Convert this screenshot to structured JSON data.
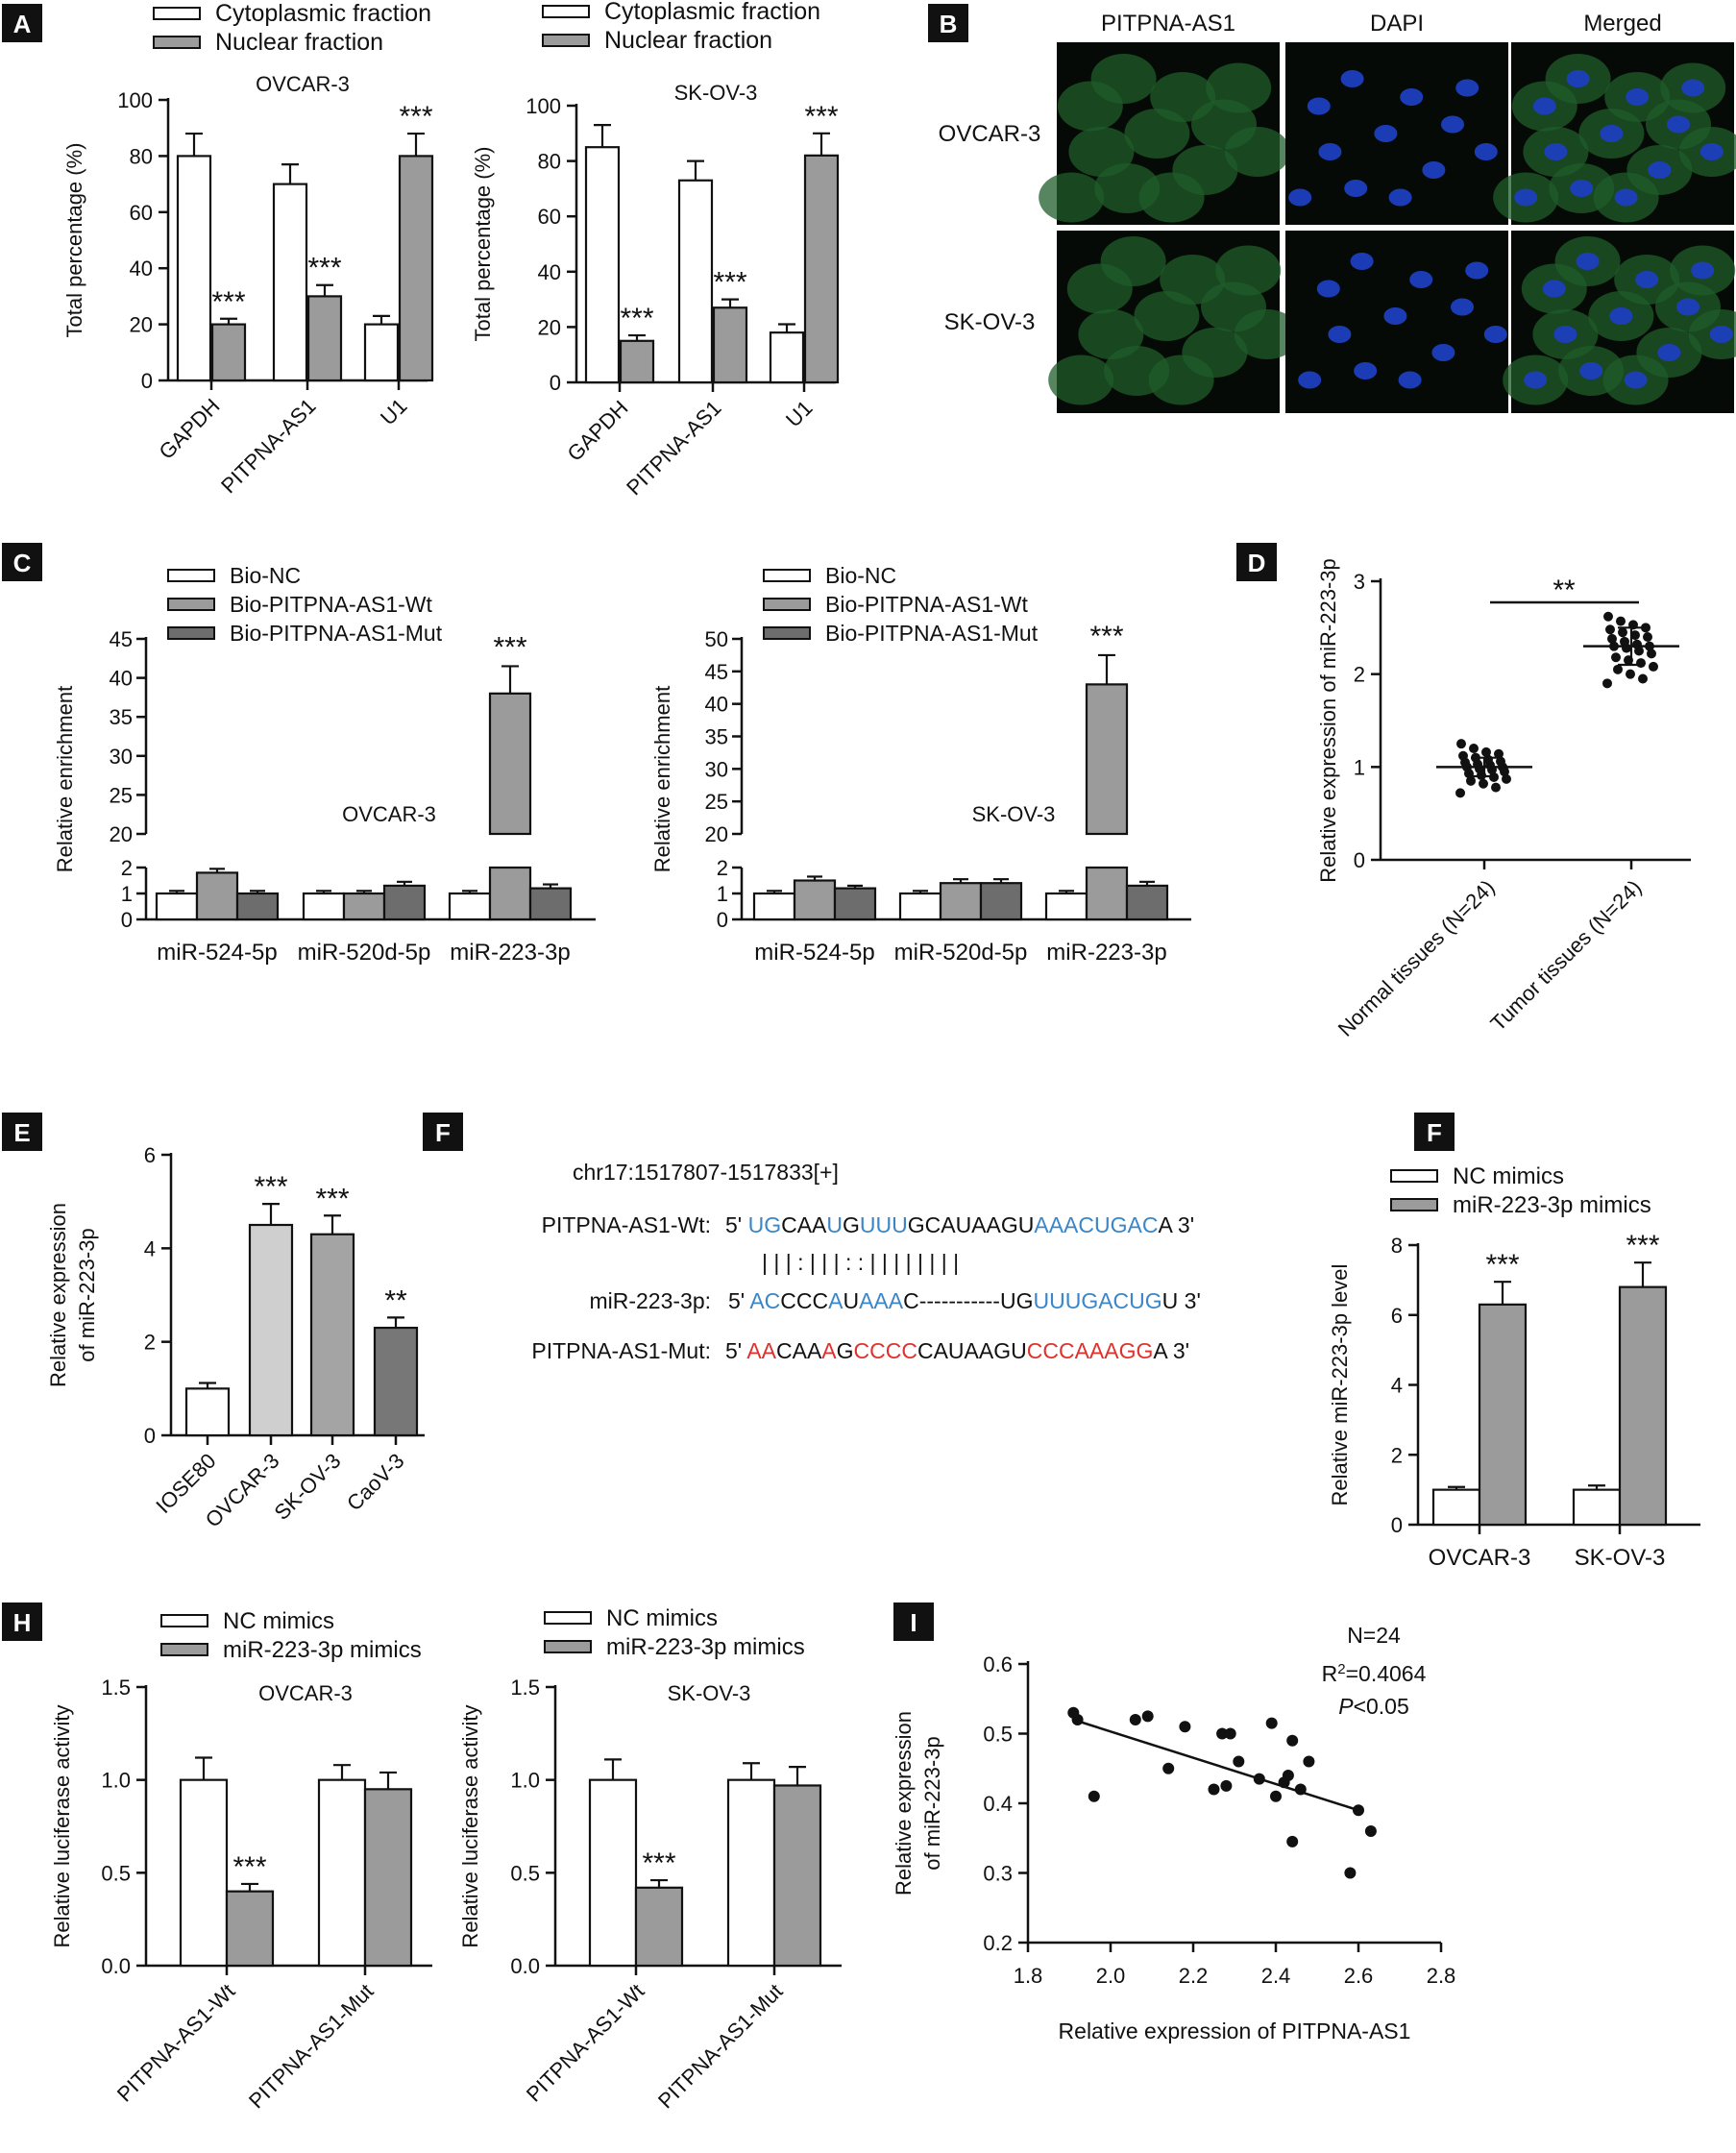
{
  "colors": {
    "white_bar": "#ffffff",
    "gray_bar": "#9b9b9b",
    "dark_bar": "#6d6d6d",
    "light_bar": "#cfcfcf",
    "mid_bar": "#a4a4a4",
    "darker_bar": "#777777",
    "label_bg": "#111111",
    "wt_blue": "#3a86c8",
    "mut_red": "#e0312c",
    "fluor_green": "#1f5c2a",
    "dapi_blue": "#1d3fbf"
  },
  "panel_labels": {
    "A": "A",
    "B": "B",
    "C": "C",
    "D": "D",
    "E": "E",
    "F1": "F",
    "F2": "F",
    "H": "H",
    "I": "I"
  },
  "chart_data": [
    {
      "id": "A1",
      "type": "bar",
      "title": "OVCAR-3",
      "ylabel": "Total percentage (%)",
      "ylim": [
        0,
        100
      ],
      "yticks": [
        0,
        20,
        40,
        60,
        80,
        100
      ],
      "categories": [
        "GAPDH",
        "PITPNA-AS1",
        "U1"
      ],
      "legend": [
        "Cytoplasmic fraction",
        "Nuclear fraction"
      ],
      "series": [
        {
          "name": "Cytoplasmic fraction",
          "values": [
            80,
            70,
            20
          ],
          "errors": [
            8,
            7,
            3
          ]
        },
        {
          "name": "Nuclear fraction",
          "values": [
            20,
            30,
            80
          ],
          "errors": [
            2,
            4,
            8
          ]
        }
      ],
      "annotations": [
        {
          "category": 0,
          "series": 1,
          "text": "***"
        },
        {
          "category": 1,
          "series": 1,
          "text": "***"
        },
        {
          "category": 2,
          "series": 1,
          "text": "***"
        }
      ]
    },
    {
      "id": "A2",
      "type": "bar",
      "title": "SK-OV-3",
      "ylabel": "Total percentage (%)",
      "ylim": [
        0,
        100
      ],
      "yticks": [
        0,
        20,
        40,
        60,
        80,
        100
      ],
      "categories": [
        "GAPDH",
        "PITPNA-AS1",
        "U1"
      ],
      "legend": [
        "Cytoplasmic fraction",
        "Nuclear fraction"
      ],
      "series": [
        {
          "name": "Cytoplasmic fraction",
          "values": [
            85,
            73,
            18
          ],
          "errors": [
            8,
            7,
            3
          ]
        },
        {
          "name": "Nuclear fraction",
          "values": [
            15,
            27,
            82
          ],
          "errors": [
            2,
            3,
            8
          ]
        }
      ],
      "annotations": [
        {
          "category": 0,
          "series": 1,
          "text": "***"
        },
        {
          "category": 1,
          "series": 1,
          "text": "***"
        },
        {
          "category": 2,
          "series": 1,
          "text": "***"
        }
      ]
    },
    {
      "id": "C1",
      "type": "bar",
      "title": "OVCAR-3",
      "ylabel": "Relative enrichment",
      "broken_axis": true,
      "lower_range": [
        0,
        2
      ],
      "lower_ticks": [
        0,
        1,
        2
      ],
      "upper_range": [
        20,
        45
      ],
      "upper_ticks": [
        20,
        25,
        30,
        35,
        40,
        45
      ],
      "categories": [
        "miR-524-5p",
        "miR-520d-5p",
        "miR-223-3p"
      ],
      "legend": [
        "Bio-NC",
        "Bio-PITPNA-AS1-Wt",
        "Bio-PITPNA-AS1-Mut"
      ],
      "series": [
        {
          "name": "Bio-NC",
          "values": [
            1.0,
            1.0,
            1.0
          ],
          "errors": [
            0.1,
            0.1,
            0.1
          ]
        },
        {
          "name": "Bio-PITPNA-AS1-Wt",
          "values": [
            1.8,
            1.0,
            38
          ],
          "errors": [
            0.15,
            0.1,
            3.5
          ]
        },
        {
          "name": "Bio-PITPNA-AS1-Mut",
          "values": [
            1.0,
            1.3,
            1.2
          ],
          "errors": [
            0.1,
            0.15,
            0.15
          ]
        }
      ],
      "annotations": [
        {
          "category": 2,
          "series": 1,
          "text": "***"
        }
      ]
    },
    {
      "id": "C2",
      "type": "bar",
      "title": "SK-OV-3",
      "ylabel": "Relative enrichment",
      "broken_axis": true,
      "lower_range": [
        0,
        2
      ],
      "lower_ticks": [
        0,
        1,
        2
      ],
      "upper_range": [
        20,
        50
      ],
      "upper_ticks": [
        20,
        25,
        30,
        35,
        40,
        45,
        50
      ],
      "categories": [
        "miR-524-5p",
        "miR-520d-5p",
        "miR-223-3p"
      ],
      "legend": [
        "Bio-NC",
        "Bio-PITPNA-AS1-Wt",
        "Bio-PITPNA-AS1-Mut"
      ],
      "series": [
        {
          "name": "Bio-NC",
          "values": [
            1.0,
            1.0,
            1.0
          ],
          "errors": [
            0.1,
            0.1,
            0.1
          ]
        },
        {
          "name": "Bio-PITPNA-AS1-Wt",
          "values": [
            1.5,
            1.4,
            43
          ],
          "errors": [
            0.15,
            0.15,
            4.5
          ]
        },
        {
          "name": "Bio-PITPNA-AS1-Mut",
          "values": [
            1.2,
            1.4,
            1.3
          ],
          "errors": [
            0.1,
            0.15,
            0.15
          ]
        }
      ],
      "annotations": [
        {
          "category": 2,
          "series": 1,
          "text": "***"
        }
      ]
    },
    {
      "id": "D",
      "type": "scatter",
      "ylabel": "Relative expression of miR-223-3p",
      "ylim": [
        0,
        3
      ],
      "yticks": [
        0,
        1,
        2,
        3
      ],
      "categories": [
        "Normal tissues (N=24)",
        "Tumor tissues (N=24)"
      ],
      "groups": [
        {
          "name": "Normal tissues (N=24)",
          "mean": 1.0,
          "sd": 0.1,
          "values": [
            0.72,
            0.78,
            0.82,
            0.85,
            0.87,
            0.89,
            0.91,
            0.93,
            0.95,
            0.97,
            0.98,
            1.0,
            1.0,
            1.02,
            1.03,
            1.05,
            1.06,
            1.08,
            1.1,
            1.12,
            1.14,
            1.16,
            1.2,
            1.25
          ]
        },
        {
          "name": "Tumor tissues (N=24)",
          "mean": 2.3,
          "sd": 0.2,
          "values": [
            1.9,
            1.95,
            2.0,
            2.05,
            2.08,
            2.12,
            2.15,
            2.18,
            2.22,
            2.25,
            2.28,
            2.3,
            2.3,
            2.32,
            2.35,
            2.38,
            2.4,
            2.42,
            2.45,
            2.48,
            2.5,
            2.53,
            2.57,
            2.62
          ]
        }
      ],
      "annotation": "**"
    },
    {
      "id": "E",
      "type": "bar",
      "ylabel": "Relative expression of miR-223-3p",
      "ylabel_lines": [
        "Relative expression",
        "of miR-223-3p"
      ],
      "ylim": [
        0,
        6
      ],
      "yticks": [
        0,
        2,
        4,
        6
      ],
      "categories": [
        "IOSE80",
        "OVCAR-3",
        "SK-OV-3",
        "CaoV-3"
      ],
      "values": [
        1.0,
        4.5,
        4.3,
        2.3
      ],
      "errors": [
        0.12,
        0.45,
        0.4,
        0.22
      ],
      "annotations": [
        "",
        "***",
        "***",
        "**"
      ]
    },
    {
      "id": "G",
      "type": "bar",
      "ylabel": "Relative miR-223-3p level",
      "ylim": [
        0,
        8
      ],
      "yticks": [
        0,
        2,
        4,
        6,
        8
      ],
      "categories": [
        "OVCAR-3",
        "SK-OV-3"
      ],
      "legend": [
        "NC mimics",
        "miR-223-3p mimics"
      ],
      "series": [
        {
          "name": "NC mimics",
          "values": [
            1.0,
            1.0
          ],
          "errors": [
            0.08,
            0.12
          ]
        },
        {
          "name": "miR-223-3p mimics",
          "values": [
            6.3,
            6.8
          ],
          "errors": [
            0.65,
            0.7
          ]
        }
      ],
      "annotations": [
        {
          "category": 0,
          "series": 1,
          "text": "***"
        },
        {
          "category": 1,
          "series": 1,
          "text": "***"
        }
      ]
    },
    {
      "id": "H1",
      "type": "bar",
      "title": "OVCAR-3",
      "ylabel": "Relative luciferase activity",
      "ylim": [
        0,
        1.5
      ],
      "yticks": [
        0.0,
        0.5,
        1.0,
        1.5
      ],
      "categories": [
        "PITPNA-AS1-Wt",
        "PITPNA-AS1-Mut"
      ],
      "legend": [
        "NC mimics",
        "miR-223-3p mimics"
      ],
      "series": [
        {
          "name": "NC mimics",
          "values": [
            1.0,
            1.0
          ],
          "errors": [
            0.12,
            0.08
          ]
        },
        {
          "name": "miR-223-3p mimics",
          "values": [
            0.4,
            0.95
          ],
          "errors": [
            0.04,
            0.09
          ]
        }
      ],
      "annotations": [
        {
          "category": 0,
          "series": 1,
          "text": "***"
        }
      ]
    },
    {
      "id": "H2",
      "type": "bar",
      "title": "SK-OV-3",
      "ylabel": "Relative luciferase activity",
      "ylim": [
        0,
        1.5
      ],
      "yticks": [
        0.0,
        0.5,
        1.0,
        1.5
      ],
      "categories": [
        "PITPNA-AS1-Wt",
        "PITPNA-AS1-Mut"
      ],
      "legend": [
        "NC mimics",
        "miR-223-3p mimics"
      ],
      "series": [
        {
          "name": "NC mimics",
          "values": [
            1.0,
            1.0
          ],
          "errors": [
            0.11,
            0.09
          ]
        },
        {
          "name": "miR-223-3p mimics",
          "values": [
            0.42,
            0.97
          ],
          "errors": [
            0.04,
            0.1
          ]
        }
      ],
      "annotations": [
        {
          "category": 0,
          "series": 1,
          "text": "***"
        }
      ]
    },
    {
      "id": "I",
      "type": "scatter",
      "xlabel": "Relative expression of PITPNA-AS1",
      "ylabel": "Relative expression of miR-223-3p",
      "ylabel_lines": [
        "Relative expression",
        "of miR-223-3p"
      ],
      "xlim": [
        1.8,
        2.8
      ],
      "xticks": [
        1.8,
        2.0,
        2.2,
        2.4,
        2.6,
        2.8
      ],
      "ylim": [
        0.2,
        0.6
      ],
      "yticks": [
        0.2,
        0.3,
        0.4,
        0.5,
        0.6
      ],
      "points": [
        [
          1.91,
          0.53
        ],
        [
          1.92,
          0.52
        ],
        [
          1.96,
          0.41
        ],
        [
          2.06,
          0.52
        ],
        [
          2.09,
          0.525
        ],
        [
          2.14,
          0.45
        ],
        [
          2.18,
          0.51
        ],
        [
          2.25,
          0.42
        ],
        [
          2.27,
          0.5
        ],
        [
          2.29,
          0.5
        ],
        [
          2.28,
          0.425
        ],
        [
          2.31,
          0.46
        ],
        [
          2.36,
          0.435
        ],
        [
          2.39,
          0.515
        ],
        [
          2.4,
          0.41
        ],
        [
          2.42,
          0.43
        ],
        [
          2.43,
          0.44
        ],
        [
          2.44,
          0.49
        ],
        [
          2.44,
          0.345
        ],
        [
          2.46,
          0.42
        ],
        [
          2.48,
          0.46
        ],
        [
          2.58,
          0.3
        ],
        [
          2.6,
          0.39
        ],
        [
          2.63,
          0.36
        ]
      ],
      "fit": [
        [
          1.91,
          0.52
        ],
        [
          2.6,
          0.39
        ]
      ],
      "stats": {
        "n": "N=24",
        "r2": "R²=0.4064",
        "p": "P<0.05"
      }
    }
  ],
  "panel_b": {
    "columns": [
      "PITPNA-AS1",
      "DAPI",
      "Merged"
    ],
    "rows": [
      "OVCAR-3",
      "SK-OV-3"
    ]
  },
  "panel_f": {
    "coord": "chr17:1517807-1517833[+]",
    "wt_label": "PITPNA-AS1-Wt:",
    "mir_label": "miR-223-3p:",
    "mut_label": "PITPNA-AS1-Mut:",
    "five": "5'",
    "three": "3'",
    "wt_segments": [
      [
        "UG",
        "b"
      ],
      [
        "CAA",
        "k"
      ],
      [
        "U",
        "b"
      ],
      [
        "G",
        "k"
      ],
      [
        "UUU",
        "b"
      ],
      [
        "GCAUAAGU",
        "k"
      ],
      [
        "AAACUGAC",
        "b"
      ],
      [
        "A",
        "k"
      ]
    ],
    "mir_segments": [
      [
        "AC",
        "b"
      ],
      [
        "CCC",
        "k"
      ],
      [
        "A",
        "b"
      ],
      [
        "U",
        "k"
      ],
      [
        "AAA",
        "b"
      ],
      [
        "C-----------UG",
        "k"
      ],
      [
        "UUUGACUG",
        "b"
      ],
      [
        "U",
        "k"
      ]
    ],
    "mut_segments": [
      [
        "AA",
        "r"
      ],
      [
        "CAA",
        "k"
      ],
      [
        "A",
        "r"
      ],
      [
        "G",
        "k"
      ],
      [
        "CCCC",
        "r"
      ],
      [
        "CAUAAGU",
        "k"
      ],
      [
        "CCCAAAGG",
        "r"
      ],
      [
        "A",
        "k"
      ]
    ],
    "pairing": "|  |       |  :  |  |  |             :  :  |  |  |  |  |  |  |  |"
  }
}
